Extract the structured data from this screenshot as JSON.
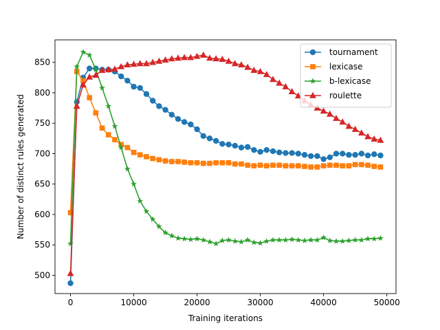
{
  "chart_data": {
    "type": "line",
    "title": "",
    "xlabel": "Training iterations",
    "ylabel": "Number of distinct rules generated",
    "xlim": [
      -2450,
      51450
    ],
    "ylim": [
      470,
      887
    ],
    "xticks": [
      0,
      10000,
      20000,
      30000,
      40000,
      50000
    ],
    "xtick_labels": [
      "0",
      "10000",
      "20000",
      "30000",
      "40000",
      "50000"
    ],
    "yticks": [
      500,
      550,
      600,
      650,
      700,
      750,
      800,
      850
    ],
    "ytick_labels": [
      "500",
      "550",
      "600",
      "650",
      "700",
      "750",
      "800",
      "850"
    ],
    "grid": false,
    "legend_position": "top-right",
    "x": [
      0,
      1000,
      2000,
      3000,
      4000,
      5000,
      6000,
      7000,
      8000,
      9000,
      10000,
      11000,
      12000,
      13000,
      14000,
      15000,
      16000,
      17000,
      18000,
      19000,
      20000,
      21000,
      22000,
      23000,
      24000,
      25000,
      26000,
      27000,
      28000,
      29000,
      30000,
      31000,
      32000,
      33000,
      34000,
      35000,
      36000,
      37000,
      38000,
      39000,
      40000,
      41000,
      42000,
      43000,
      44000,
      45000,
      46000,
      47000,
      48000,
      49000
    ],
    "series": [
      {
        "name": "tournament",
        "color": "#1f77b4",
        "marker": "circle",
        "values": [
          487,
          785,
          825,
          840,
          840,
          838,
          838,
          835,
          827,
          820,
          810,
          808,
          798,
          787,
          778,
          772,
          764,
          757,
          752,
          748,
          740,
          729,
          725,
          721,
          716,
          715,
          713,
          710,
          711,
          706,
          703,
          706,
          704,
          702,
          701,
          701,
          700,
          698,
          696,
          696,
          691,
          694,
          700,
          700,
          698,
          698,
          700,
          697,
          699,
          697
        ]
      },
      {
        "name": "lexicase",
        "color": "#ff7f0e",
        "marker": "square",
        "values": [
          603,
          835,
          820,
          792,
          767,
          742,
          731,
          723,
          715,
          710,
          702,
          698,
          695,
          692,
          690,
          688,
          687,
          687,
          686,
          685,
          685,
          684,
          684,
          685,
          685,
          685,
          683,
          683,
          681,
          680,
          681,
          680,
          681,
          681,
          680,
          680,
          680,
          679,
          678,
          678,
          680,
          681,
          681,
          680,
          680,
          682,
          682,
          681,
          679,
          678
        ]
      },
      {
        "name": "b-lexicase",
        "color": "#2ca02c",
        "marker": "star",
        "values": [
          552,
          843,
          867,
          862,
          838,
          808,
          778,
          745,
          710,
          675,
          650,
          622,
          605,
          592,
          580,
          570,
          565,
          561,
          560,
          559,
          560,
          558,
          555,
          552,
          557,
          558,
          556,
          555,
          558,
          554,
          553,
          556,
          558,
          558,
          558,
          559,
          558,
          557,
          558,
          558,
          562,
          557,
          556,
          556,
          557,
          558,
          558,
          560,
          560,
          561
        ]
      },
      {
        "name": "roulette",
        "color": "#d62728",
        "marker": "triangle",
        "values": [
          503,
          778,
          813,
          826,
          829,
          837,
          838,
          839,
          843,
          846,
          847,
          848,
          848,
          850,
          852,
          854,
          856,
          857,
          858,
          858,
          860,
          862,
          857,
          856,
          855,
          852,
          848,
          846,
          842,
          837,
          835,
          830,
          822,
          816,
          810,
          802,
          795,
          787,
          780,
          775,
          770,
          765,
          758,
          752,
          745,
          740,
          734,
          728,
          724,
          722
        ]
      }
    ]
  }
}
